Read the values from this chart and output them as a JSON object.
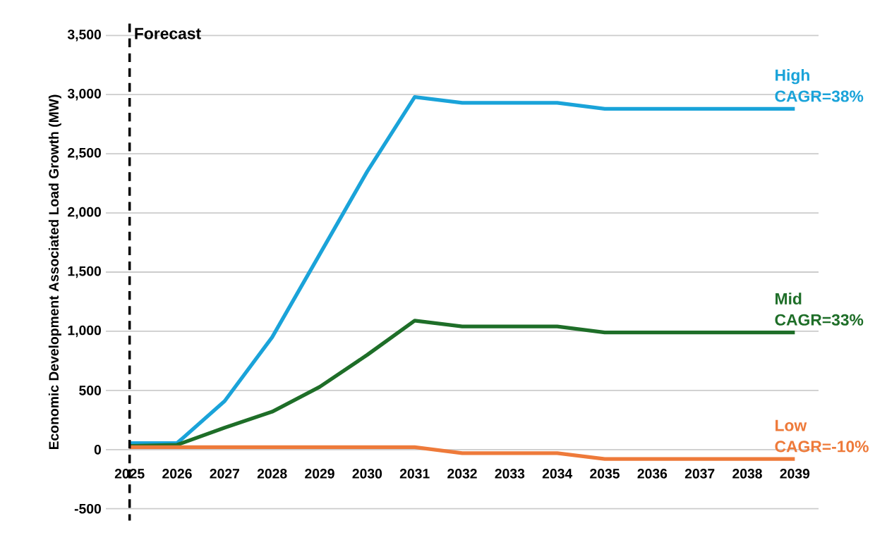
{
  "chart_data": {
    "type": "line",
    "ylabel": "Economic Development Associated Load Growth (MW)",
    "x": [
      2025,
      2026,
      2027,
      2028,
      2029,
      2030,
      2031,
      2032,
      2033,
      2034,
      2035,
      2036,
      2037,
      2038,
      2039
    ],
    "series": [
      {
        "name": "High CAGR=38%",
        "color": "#1aa3d9",
        "values": [
          55,
          55,
          410,
          950,
          1650,
          2350,
          2980,
          2930,
          2930,
          2930,
          2880,
          2880,
          2880,
          2880,
          2880
        ]
      },
      {
        "name": "Mid CAGR=33%",
        "color": "#1e6e28",
        "values": [
          30,
          40,
          185,
          320,
          530,
          800,
          1090,
          1040,
          1040,
          1040,
          990,
          990,
          990,
          990,
          990
        ]
      },
      {
        "name": "Low CAGR=-10%",
        "color": "#ee7a3a",
        "values": [
          20,
          20,
          20,
          20,
          20,
          20,
          20,
          -30,
          -30,
          -30,
          -80,
          -80,
          -80,
          -80,
          -80
        ]
      }
    ],
    "xlim": [
      2024.5,
      2039.5
    ],
    "xticks": [
      2025,
      2026,
      2027,
      2028,
      2029,
      2030,
      2031,
      2032,
      2033,
      2034,
      2035,
      2036,
      2037,
      2038,
      2039
    ],
    "ylim": [
      -600,
      3600
    ],
    "yticks": [
      {
        "value": -500,
        "label": "-500"
      },
      {
        "value": 0,
        "label": "0"
      },
      {
        "value": 500,
        "label": "500"
      },
      {
        "value": 1000,
        "label": "1,000"
      },
      {
        "value": 1500,
        "label": "1,500"
      },
      {
        "value": 2000,
        "label": "2,000"
      },
      {
        "value": 2500,
        "label": "2,500"
      },
      {
        "value": 3000,
        "label": "3,000"
      },
      {
        "value": 3500,
        "label": "3,500"
      }
    ],
    "grid": "y",
    "legend": false,
    "marker": "none",
    "line_style": "solid",
    "ref_lines": [
      {
        "axis": "x",
        "value": 2025,
        "label": "Forecast",
        "color": "#000000",
        "line_style": "dashed"
      }
    ]
  }
}
